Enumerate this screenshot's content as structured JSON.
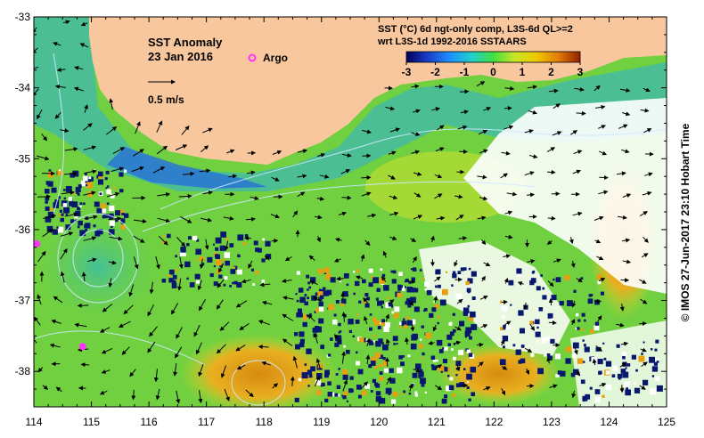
{
  "map": {
    "title": "SST Anomaly",
    "date": "23 Jan 2016",
    "argo_label": "Argo",
    "vector_scale_label": "0.5 m/s",
    "product_line1": "SST (°C) 6d ngt-only comp, L3S-6d QL>=2",
    "product_line2": "wrt L3S-1d 1992-2016 SSTAARS",
    "credit": "© IMOS 27-Jun-2017 23:10 Hobart Time",
    "lon_ticks": [
      "114",
      "115",
      "116",
      "117",
      "118",
      "119",
      "120",
      "121",
      "122",
      "123",
      "124",
      "125"
    ],
    "lat_ticks": [
      "-33",
      "-34",
      "-35",
      "-36",
      "-37",
      "-38"
    ],
    "lon_range": [
      114,
      125
    ],
    "lat_range": [
      -38.5,
      -33
    ],
    "colorbar": {
      "ticks": [
        "-3",
        "-2",
        "-1",
        "0",
        "1",
        "2",
        "3"
      ],
      "range": [
        -3,
        3
      ]
    },
    "argo_floats": [
      {
        "lon": 114.05,
        "lat": -36.2
      },
      {
        "lon": 114.85,
        "lat": -37.65
      }
    ],
    "colors": {
      "land": "#f8c79d",
      "no_data": "#ffffff",
      "argo": "#ff33ff",
      "contour": "#cfe8ff"
    }
  }
}
